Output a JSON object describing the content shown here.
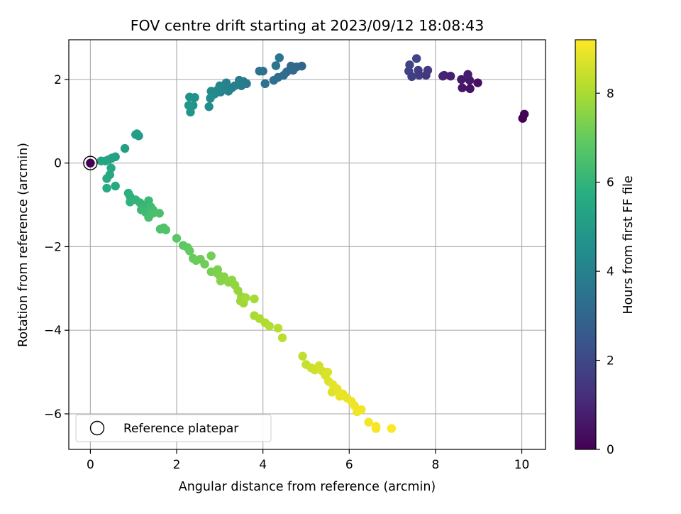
{
  "chart_data": {
    "type": "scatter",
    "title": "FOV centre drift starting at 2023/09/12 18:08:43",
    "xlabel": "Angular distance from reference (arcmin)",
    "ylabel": "Rotation from reference (arcmin)",
    "xlim": [
      -0.5,
      10.55
    ],
    "ylim": [
      -6.85,
      2.95
    ],
    "xticks": [
      0,
      2,
      4,
      6,
      8,
      10
    ],
    "yticks": [
      -6,
      -4,
      -2,
      0,
      2
    ],
    "grid": true,
    "legend": {
      "position": "lower-left",
      "entries": [
        "Reference platepar"
      ]
    },
    "colorbar": {
      "label": "Hours from first FF file",
      "colormap": "viridis",
      "range": [
        0,
        9.2
      ],
      "ticks": [
        0,
        2,
        4,
        6,
        8
      ]
    },
    "reference_point": {
      "x": 0,
      "y": 0,
      "label": "Reference platepar"
    },
    "points": [
      [
        10.02,
        1.07,
        0.0
      ],
      [
        10.06,
        1.17,
        0.1
      ],
      [
        8.98,
        1.92,
        0.4
      ],
      [
        8.8,
        1.78,
        0.5
      ],
      [
        8.62,
        1.8,
        0.55
      ],
      [
        8.79,
        1.98,
        0.6
      ],
      [
        8.6,
        2.0,
        0.65
      ],
      [
        8.75,
        2.12,
        0.7
      ],
      [
        8.35,
        2.08,
        0.8
      ],
      [
        8.2,
        2.1,
        0.85
      ],
      [
        8.17,
        2.08,
        0.9
      ],
      [
        7.78,
        2.1,
        1.5
      ],
      [
        7.82,
        2.22,
        1.55
      ],
      [
        7.62,
        2.1,
        1.6
      ],
      [
        7.6,
        2.22,
        1.65
      ],
      [
        7.45,
        2.07,
        1.7
      ],
      [
        7.38,
        2.2,
        1.8
      ],
      [
        7.4,
        2.35,
        1.85
      ],
      [
        7.56,
        2.5,
        1.9
      ],
      [
        4.9,
        2.32,
        3.0
      ],
      [
        4.78,
        2.3,
        3.05
      ],
      [
        4.65,
        2.32,
        3.1
      ],
      [
        4.7,
        2.22,
        3.15
      ],
      [
        4.55,
        2.18,
        3.2
      ],
      [
        4.48,
        2.1,
        3.25
      ],
      [
        4.35,
        2.05,
        3.3
      ],
      [
        4.25,
        1.98,
        3.35
      ],
      [
        4.05,
        1.9,
        3.4
      ],
      [
        4.0,
        2.2,
        3.45
      ],
      [
        3.92,
        2.2,
        3.5
      ],
      [
        4.38,
        2.52,
        3.55
      ],
      [
        4.3,
        2.33,
        3.6
      ],
      [
        3.62,
        1.9,
        3.7
      ],
      [
        3.55,
        1.95,
        3.75
      ],
      [
        3.5,
        1.85,
        3.8
      ],
      [
        3.45,
        1.98,
        3.85
      ],
      [
        3.35,
        1.85,
        3.9
      ],
      [
        3.28,
        1.8,
        3.95
      ],
      [
        3.2,
        1.72,
        4.0
      ],
      [
        3.15,
        1.92,
        4.05
      ],
      [
        3.1,
        1.8,
        4.1
      ],
      [
        3.02,
        1.7,
        4.15
      ],
      [
        3.0,
        1.85,
        4.2
      ],
      [
        2.95,
        1.75,
        4.25
      ],
      [
        2.88,
        1.65,
        4.3
      ],
      [
        2.8,
        1.72,
        4.35
      ],
      [
        2.78,
        1.55,
        4.4
      ],
      [
        2.75,
        1.35,
        4.45
      ],
      [
        2.42,
        1.57,
        4.6
      ],
      [
        2.3,
        1.58,
        4.65
      ],
      [
        2.38,
        1.38,
        4.7
      ],
      [
        2.32,
        1.22,
        4.75
      ],
      [
        2.28,
        1.38,
        4.8
      ],
      [
        1.12,
        0.65,
        5.0
      ],
      [
        1.08,
        0.7,
        5.05
      ],
      [
        1.05,
        0.68,
        5.1
      ],
      [
        0.8,
        0.35,
        5.15
      ],
      [
        0.58,
        0.15,
        5.2
      ],
      [
        0.5,
        0.12,
        5.25
      ],
      [
        0.42,
        0.08,
        5.3
      ],
      [
        0.35,
        0.05,
        5.35
      ],
      [
        0.25,
        0.05,
        5.4
      ],
      [
        0.48,
        -0.12,
        5.45
      ],
      [
        0.45,
        -0.28,
        5.5
      ],
      [
        0.38,
        -0.37,
        5.55
      ],
      [
        0.58,
        -0.55,
        5.6
      ],
      [
        0.38,
        -0.6,
        5.65
      ],
      [
        0.88,
        -0.72,
        5.8
      ],
      [
        0.92,
        -0.8,
        5.85
      ],
      [
        0.92,
        -0.93,
        5.9
      ],
      [
        1.05,
        -0.88,
        5.95
      ],
      [
        1.15,
        -0.95,
        6.0
      ],
      [
        1.22,
        -1.05,
        6.05
      ],
      [
        1.3,
        -1.0,
        6.1
      ],
      [
        1.35,
        -0.9,
        6.15
      ],
      [
        1.18,
        -1.12,
        6.2
      ],
      [
        1.28,
        -1.18,
        6.25
      ],
      [
        1.4,
        -1.05,
        6.3
      ],
      [
        1.45,
        -1.12,
        6.35
      ],
      [
        1.35,
        -1.3,
        6.4
      ],
      [
        1.45,
        -1.2,
        6.45
      ],
      [
        1.6,
        -1.2,
        6.5
      ],
      [
        1.62,
        -1.58,
        6.55
      ],
      [
        1.7,
        -1.55,
        6.6
      ],
      [
        1.75,
        -1.6,
        6.65
      ],
      [
        2.0,
        -1.8,
        6.8
      ],
      [
        2.15,
        -1.97,
        6.85
      ],
      [
        2.25,
        -2.02,
        6.9
      ],
      [
        2.3,
        -2.1,
        6.95
      ],
      [
        2.38,
        -2.28,
        7.0
      ],
      [
        2.45,
        -2.33,
        7.05
      ],
      [
        2.55,
        -2.3,
        7.1
      ],
      [
        2.65,
        -2.42,
        7.15
      ],
      [
        2.8,
        -2.22,
        7.2
      ],
      [
        2.8,
        -2.6,
        7.25
      ],
      [
        2.92,
        -2.62,
        7.3
      ],
      [
        2.95,
        -2.55,
        7.35
      ],
      [
        3.0,
        -2.7,
        7.4
      ],
      [
        3.02,
        -2.82,
        7.45
      ],
      [
        3.1,
        -2.72,
        7.5
      ],
      [
        3.2,
        -2.85,
        7.55
      ],
      [
        3.28,
        -2.8,
        7.6
      ],
      [
        3.35,
        -2.92,
        7.65
      ],
      [
        3.42,
        -3.05,
        7.7
      ],
      [
        3.5,
        -3.2,
        7.75
      ],
      [
        3.48,
        -3.3,
        7.8
      ],
      [
        3.55,
        -3.35,
        7.85
      ],
      [
        3.6,
        -3.22,
        7.9
      ],
      [
        3.8,
        -3.25,
        7.95
      ],
      [
        3.8,
        -3.65,
        8.0
      ],
      [
        3.92,
        -3.72,
        8.05
      ],
      [
        4.05,
        -3.82,
        8.1
      ],
      [
        4.15,
        -3.9,
        8.15
      ],
      [
        4.35,
        -3.95,
        8.2
      ],
      [
        4.45,
        -4.18,
        8.25
      ],
      [
        4.92,
        -4.62,
        8.35
      ],
      [
        5.0,
        -4.82,
        8.4
      ],
      [
        5.12,
        -4.9,
        8.45
      ],
      [
        5.2,
        -4.95,
        8.5
      ],
      [
        5.3,
        -4.85,
        8.55
      ],
      [
        5.38,
        -4.98,
        8.6
      ],
      [
        5.45,
        -5.08,
        8.65
      ],
      [
        5.5,
        -5.0,
        8.7
      ],
      [
        5.52,
        -5.22,
        8.75
      ],
      [
        5.6,
        -5.48,
        8.8
      ],
      [
        5.62,
        -5.3,
        8.82
      ],
      [
        5.72,
        -5.4,
        8.85
      ],
      [
        5.78,
        -5.58,
        8.88
      ],
      [
        5.85,
        -5.52,
        8.9
      ],
      [
        5.95,
        -5.62,
        8.92
      ],
      [
        6.05,
        -5.7,
        8.95
      ],
      [
        6.12,
        -5.8,
        8.97
      ],
      [
        6.18,
        -5.95,
        9.0
      ],
      [
        6.28,
        -5.9,
        9.02
      ],
      [
        6.45,
        -6.2,
        9.05
      ],
      [
        6.62,
        -6.35,
        9.08
      ],
      [
        6.62,
        -6.3,
        9.1
      ],
      [
        6.98,
        -6.35,
        9.15
      ]
    ]
  }
}
